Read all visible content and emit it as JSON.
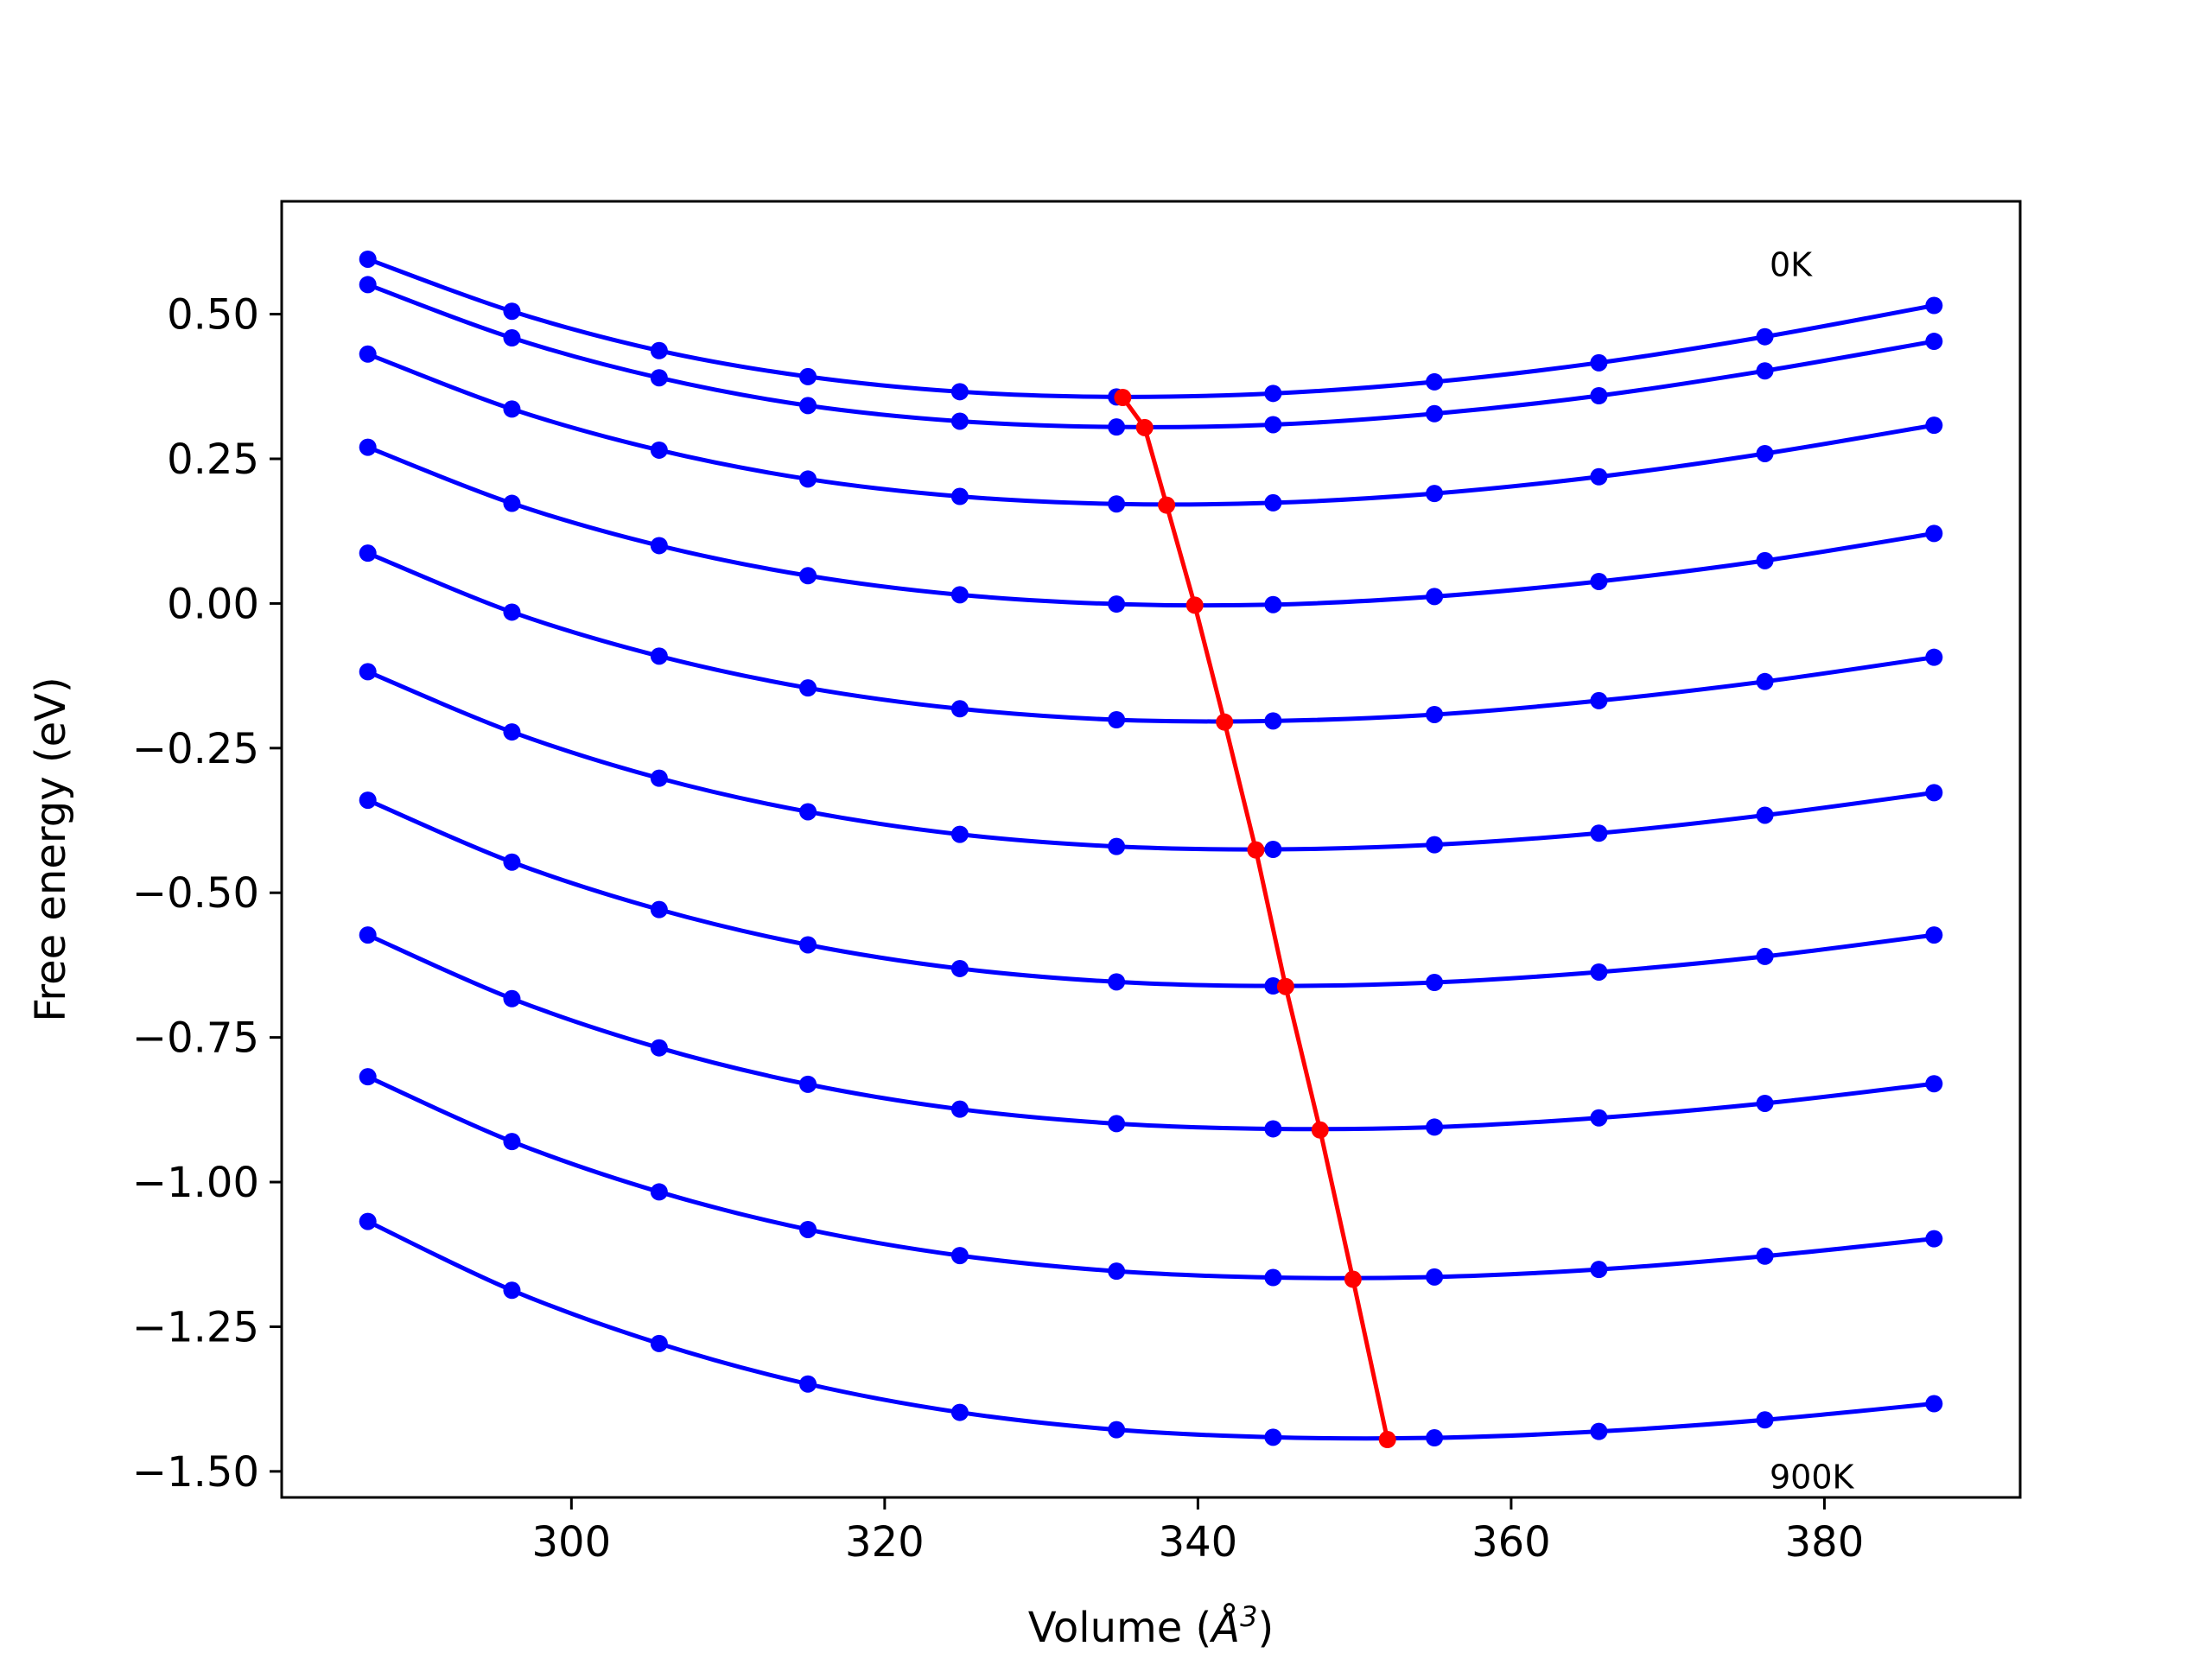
{
  "chart_data": {
    "type": "line",
    "xlabel_main": "Volume (",
    "xlabel_unit": "Å",
    "xlabel_sup": "3",
    "xlabel_close": ")",
    "ylabel": "Free energy (eV)",
    "xlim": [
      281.5,
      392.5
    ],
    "ylim": [
      -1.545,
      0.695
    ],
    "xticks": [
      300,
      320,
      340,
      360,
      380
    ],
    "xtick_labels": [
      "300",
      "320",
      "340",
      "360",
      "380"
    ],
    "yticks": [
      0.5,
      0.25,
      0.0,
      -0.25,
      -0.5,
      -0.75,
      -1.0,
      -1.25,
      -1.5
    ],
    "ytick_labels": [
      "0.50",
      "0.25",
      "0.00",
      "−0.25",
      "−0.50",
      "−0.75",
      "−1.00",
      "−1.25",
      "−1.50"
    ],
    "annotations": [
      {
        "text": "0K",
        "x": 376.5,
        "y": 0.585
      },
      {
        "text": "900K",
        "x": 376.5,
        "y": -1.51
      }
    ],
    "x": [
      287.0,
      296.2,
      305.6,
      315.1,
      324.8,
      334.8,
      344.8,
      355.1,
      365.6,
      376.2,
      387.0
    ],
    "curve_color": "#0000ff",
    "min_line_color": "#ff0000",
    "series": [
      {
        "values": [
          0.595,
          0.505,
          0.437,
          0.392,
          0.366,
          0.357,
          0.363,
          0.383,
          0.416,
          0.461,
          0.515
        ]
      },
      {
        "values": [
          0.551,
          0.459,
          0.39,
          0.342,
          0.315,
          0.305,
          0.309,
          0.328,
          0.359,
          0.402,
          0.453
        ]
      },
      {
        "values": [
          0.431,
          0.336,
          0.265,
          0.215,
          0.185,
          0.172,
          0.174,
          0.19,
          0.219,
          0.259,
          0.308
        ]
      },
      {
        "values": [
          0.27,
          0.173,
          0.1,
          0.048,
          0.015,
          -0.001,
          -0.002,
          0.012,
          0.038,
          0.074,
          0.121
        ]
      },
      {
        "values": [
          0.087,
          -0.015,
          -0.091,
          -0.146,
          -0.182,
          -0.201,
          -0.203,
          -0.192,
          -0.168,
          -0.135,
          -0.093
        ]
      },
      {
        "values": [
          -0.118,
          -0.222,
          -0.302,
          -0.36,
          -0.399,
          -0.42,
          -0.425,
          -0.417,
          -0.397,
          -0.366,
          -0.327
        ]
      },
      {
        "values": [
          -0.34,
          -0.447,
          -0.529,
          -0.59,
          -0.631,
          -0.654,
          -0.661,
          -0.655,
          -0.637,
          -0.61,
          -0.573
        ]
      },
      {
        "values": [
          -0.573,
          -0.683,
          -0.768,
          -0.831,
          -0.874,
          -0.899,
          -0.908,
          -0.905,
          -0.889,
          -0.864,
          -0.83
        ]
      },
      {
        "values": [
          -0.818,
          -0.93,
          -1.017,
          -1.082,
          -1.127,
          -1.154,
          -1.165,
          -1.164,
          -1.151,
          -1.128,
          -1.098
        ]
      },
      {
        "values": [
          -1.068,
          -1.187,
          -1.279,
          -1.349,
          -1.398,
          -1.428,
          -1.441,
          -1.442,
          -1.431,
          -1.411,
          -1.383
        ]
      }
    ],
    "minima": [
      {
        "x": 335.2,
        "y": 0.356
      },
      {
        "x": 336.6,
        "y": 0.304
      },
      {
        "x": 338.0,
        "y": 0.17
      },
      {
        "x": 339.8,
        "y": -0.003
      },
      {
        "x": 341.7,
        "y": -0.205
      },
      {
        "x": 343.7,
        "y": -0.426
      },
      {
        "x": 345.6,
        "y": -0.662
      },
      {
        "x": 347.8,
        "y": -0.91
      },
      {
        "x": 349.9,
        "y": -1.168
      },
      {
        "x": 352.1,
        "y": -1.445
      }
    ]
  }
}
